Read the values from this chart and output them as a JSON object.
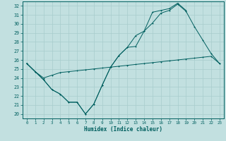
{
  "xlabel": "Humidex (Indice chaleur)",
  "bg_color": "#c2e0e0",
  "line_color": "#005f5f",
  "grid_color": "#a8cccc",
  "xlim": [
    -0.5,
    23.5
  ],
  "ylim": [
    19.5,
    32.5
  ],
  "xticks": [
    0,
    1,
    2,
    3,
    4,
    5,
    6,
    7,
    8,
    9,
    10,
    11,
    12,
    13,
    14,
    15,
    16,
    17,
    18,
    19,
    20,
    21,
    22,
    23
  ],
  "yticks": [
    20,
    21,
    22,
    23,
    24,
    25,
    26,
    27,
    28,
    29,
    30,
    31,
    32
  ],
  "line1_x": [
    0,
    1,
    2,
    3,
    4,
    5,
    6,
    7,
    8,
    9,
    10,
    11,
    12,
    13,
    14,
    15,
    16,
    17,
    18,
    19,
    20,
    21,
    22,
    23
  ],
  "line1_y": [
    25.6,
    24.7,
    24.0,
    24.3,
    24.6,
    24.7,
    24.8,
    24.9,
    25.0,
    25.1,
    25.2,
    25.3,
    25.4,
    25.5,
    25.6,
    25.7,
    25.8,
    25.9,
    26.0,
    26.1,
    26.2,
    26.3,
    26.4,
    25.6
  ],
  "line2_x": [
    0,
    1,
    2,
    3,
    4,
    5,
    6,
    7,
    8,
    9,
    10,
    11,
    12,
    13,
    14,
    15,
    16,
    17,
    18,
    19,
    20,
    21,
    22,
    23
  ],
  "line2_y": [
    25.6,
    24.7,
    23.8,
    22.7,
    22.2,
    21.3,
    21.3,
    20.0,
    21.1,
    23.2,
    25.2,
    26.5,
    27.4,
    27.5,
    29.2,
    30.1,
    31.2,
    31.5,
    32.2,
    31.4,
    29.7,
    28.2,
    26.7,
    25.6
  ],
  "line3_x": [
    0,
    1,
    2,
    3,
    4,
    5,
    6,
    7,
    8,
    9,
    10,
    11,
    12,
    13,
    14,
    15,
    16,
    17,
    18,
    19
  ],
  "line3_y": [
    25.6,
    24.7,
    23.8,
    22.7,
    22.2,
    21.3,
    21.3,
    20.0,
    21.1,
    23.2,
    25.2,
    26.5,
    27.4,
    28.7,
    29.2,
    31.3,
    31.5,
    31.7,
    32.3,
    31.5
  ]
}
